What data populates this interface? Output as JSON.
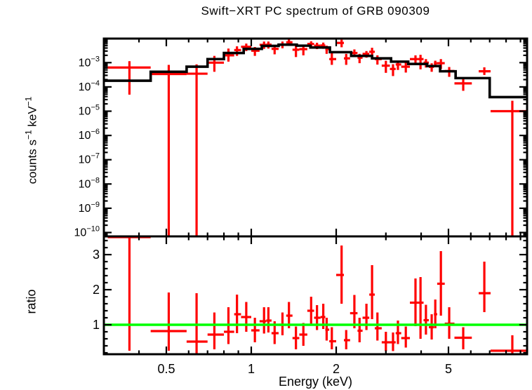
{
  "chart_data": {
    "type": "scatter",
    "title": "Swift−XRT PC spectrum of GRB 090309",
    "xlabel": "Energy (keV)",
    "colors": {
      "data": "#ff0000",
      "model": "#000000",
      "ratio_line": "#00ff00",
      "frame": "#000000",
      "background": "#ffffff"
    },
    "x_axis": {
      "scale": "log",
      "min": 0.3,
      "max": 9.5,
      "major_ticks": [
        0.5,
        1,
        2,
        5
      ],
      "major_tick_labels": [
        "0.5",
        "1",
        "2",
        "5"
      ],
      "minor_ticks": [
        0.3,
        0.4,
        0.6,
        0.7,
        0.8,
        0.9,
        3,
        4,
        6,
        7,
        8,
        9
      ]
    },
    "top_panel": {
      "ylabel_parts": {
        "pre": "counts s",
        "sup1": "−1",
        "mid": " keV",
        "sup2": "−1"
      },
      "y_scale": "log",
      "y_min": 1e-10,
      "y_max": 0.0098,
      "y_major_exponents": [
        -3,
        -4,
        -5,
        -6,
        -7,
        -8,
        -9,
        -10
      ],
      "model_bin_fields": [
        "E_lo_keV",
        "E_hi_keV",
        "model_counts"
      ],
      "model_bins": [
        [
          0.3,
          0.44,
          0.00018
        ],
        [
          0.44,
          0.59,
          0.00042
        ],
        [
          0.59,
          0.7,
          0.00068
        ],
        [
          0.7,
          0.8,
          0.0014
        ],
        [
          0.8,
          0.94,
          0.0025
        ],
        [
          0.94,
          1.09,
          0.0037
        ],
        [
          1.09,
          1.25,
          0.0049
        ],
        [
          1.25,
          1.45,
          0.0055
        ],
        [
          1.45,
          1.62,
          0.005
        ],
        [
          1.62,
          1.9,
          0.0042
        ],
        [
          1.9,
          2.26,
          0.0027
        ],
        [
          2.26,
          2.68,
          0.0019
        ],
        [
          2.68,
          3.13,
          0.0015
        ],
        [
          3.13,
          3.6,
          0.0011
        ],
        [
          3.6,
          4.2,
          0.00088
        ],
        [
          4.2,
          4.67,
          0.00072
        ],
        [
          4.67,
          5.3,
          0.00044
        ],
        [
          5.3,
          7.0,
          0.00023
        ],
        [
          7.0,
          9.5,
          3.8e-05
        ]
      ],
      "point_fields": [
        "E_keV",
        "E_lo",
        "E_hi",
        "counts",
        "err_lo",
        "err_hi"
      ],
      "points": [
        [
          0.37,
          0.31,
          0.44,
          0.00063,
          4.8e-05,
          0.00115
        ],
        [
          0.51,
          0.44,
          0.59,
          0.00034,
          0,
          0.00081
        ],
        [
          0.64,
          0.59,
          0.7,
          0.00035,
          0,
          0.00085
        ],
        [
          0.74,
          0.7,
          0.8,
          0.001,
          0.00042,
          0.0019
        ],
        [
          0.83,
          0.8,
          0.87,
          0.002,
          0.0011,
          0.0038
        ],
        [
          0.89,
          0.87,
          0.92,
          0.0033,
          0.0019,
          0.0047
        ],
        [
          0.96,
          0.92,
          1.0,
          0.0045,
          0.003,
          0.0061
        ],
        [
          1.03,
          1.0,
          1.07,
          0.0031,
          0.0019,
          0.0044
        ],
        [
          1.11,
          1.07,
          1.13,
          0.0054,
          0.0037,
          0.0074
        ],
        [
          1.15,
          1.13,
          1.18,
          0.0055,
          0.0038,
          0.0074
        ],
        [
          1.21,
          1.18,
          1.25,
          0.0037,
          0.0022,
          0.0054
        ],
        [
          1.29,
          1.25,
          1.33,
          0.0055,
          0.0039,
          0.0074
        ],
        [
          1.36,
          1.33,
          1.4,
          0.0069,
          0.005,
          0.0091
        ],
        [
          1.44,
          1.4,
          1.48,
          0.0034,
          0.0017,
          0.0052
        ],
        [
          1.53,
          1.48,
          1.58,
          0.0036,
          0.002,
          0.0053
        ],
        [
          1.63,
          1.58,
          1.67,
          0.0059,
          0.0042,
          0.0076
        ],
        [
          1.71,
          1.67,
          1.76,
          0.005,
          0.0036,
          0.0066
        ],
        [
          1.8,
          1.76,
          1.83,
          0.0051,
          0.0037,
          0.0067
        ],
        [
          1.85,
          1.83,
          1.89,
          0.0036,
          0.0023,
          0.005
        ],
        [
          1.93,
          1.89,
          2.0,
          0.0014,
          0.00081,
          0.0025
        ],
        [
          2.09,
          2.0,
          2.13,
          0.0065,
          0.0043,
          0.0088
        ],
        [
          2.17,
          2.13,
          2.24,
          0.0015,
          0.00081,
          0.0023
        ],
        [
          2.32,
          2.24,
          2.38,
          0.0025,
          0.0017,
          0.0035
        ],
        [
          2.42,
          2.38,
          2.48,
          0.0016,
          0.00095,
          0.0023
        ],
        [
          2.56,
          2.48,
          2.62,
          0.0023,
          0.0016,
          0.003
        ],
        [
          2.68,
          2.62,
          2.74,
          0.0028,
          0.0017,
          0.0041
        ],
        [
          2.8,
          2.74,
          2.9,
          0.0014,
          0.00083,
          0.002
        ],
        [
          3.0,
          2.9,
          3.1,
          0.00075,
          0.00038,
          0.0012
        ],
        [
          3.18,
          3.1,
          3.25,
          0.00055,
          0.00028,
          0.00086
        ],
        [
          3.31,
          3.25,
          3.4,
          0.00084,
          0.0005,
          0.0012
        ],
        [
          3.53,
          3.4,
          3.65,
          0.00068,
          0.00039,
          0.001
        ],
        [
          3.82,
          3.65,
          3.9,
          0.0014,
          0.00084,
          0.002
        ],
        [
          3.98,
          3.9,
          4.08,
          0.0014,
          0.00053,
          0.0021
        ],
        [
          4.16,
          4.08,
          4.26,
          0.001,
          0.00063,
          0.0014
        ],
        [
          4.36,
          4.26,
          4.44,
          0.00067,
          0.00042,
          0.00094
        ],
        [
          4.49,
          4.44,
          4.56,
          0.00094,
          0.00065,
          0.0012
        ],
        [
          4.7,
          4.56,
          4.85,
          0.00095,
          0.00055,
          0.0014
        ],
        [
          5.03,
          4.85,
          5.25,
          0.00045,
          0.00026,
          0.00066
        ],
        [
          5.64,
          5.25,
          6.05,
          0.00014,
          6.9e-05,
          0.00021
        ],
        [
          6.7,
          6.4,
          7.05,
          0.00044,
          0.00031,
          0.00064
        ],
        [
          8.42,
          7.05,
          9.5,
          1e-05,
          0,
          2.7e-05
        ]
      ]
    },
    "ratio_panel": {
      "ylabel": "ratio",
      "y_scale": "linear",
      "y_min": 0.16,
      "y_max": 3.52,
      "y_major_ticks": [
        1,
        2,
        3
      ],
      "y_minor_step": 0.2,
      "reference_line": 1.0,
      "point_fields": [
        "E_keV",
        "E_lo",
        "E_hi",
        "ratio",
        "err_lo",
        "err_hi"
      ],
      "points": [
        [
          0.37,
          0.31,
          0.44,
          3.5,
          0.26,
          3.55
        ],
        [
          0.51,
          0.44,
          0.59,
          0.82,
          0.26,
          1.92
        ],
        [
          0.64,
          0.59,
          0.7,
          0.52,
          0.0,
          1.9
        ],
        [
          0.74,
          0.7,
          0.8,
          0.72,
          0.3,
          1.35
        ],
        [
          0.83,
          0.8,
          0.87,
          0.8,
          0.45,
          1.5
        ],
        [
          0.89,
          0.87,
          0.92,
          1.3,
          0.76,
          1.86
        ],
        [
          0.96,
          0.92,
          1.0,
          1.22,
          0.8,
          1.65
        ],
        [
          1.03,
          1.0,
          1.07,
          0.84,
          0.5,
          1.2
        ],
        [
          1.11,
          1.07,
          1.13,
          1.1,
          0.75,
          1.5
        ],
        [
          1.15,
          1.13,
          1.18,
          1.12,
          0.78,
          1.5
        ],
        [
          1.21,
          1.18,
          1.25,
          0.76,
          0.45,
          1.1
        ],
        [
          1.29,
          1.25,
          1.33,
          1.0,
          0.7,
          1.35
        ],
        [
          1.36,
          1.33,
          1.4,
          1.26,
          0.9,
          1.65
        ],
        [
          1.44,
          1.4,
          1.48,
          0.62,
          0.3,
          0.95
        ],
        [
          1.53,
          1.48,
          1.58,
          0.72,
          0.4,
          1.05
        ],
        [
          1.63,
          1.58,
          1.67,
          1.4,
          1.0,
          1.8
        ],
        [
          1.71,
          1.67,
          1.76,
          1.2,
          0.85,
          1.56
        ],
        [
          1.8,
          1.76,
          1.83,
          1.22,
          0.88,
          1.6
        ],
        [
          1.85,
          1.83,
          1.89,
          0.86,
          0.55,
          1.2
        ],
        [
          1.93,
          1.89,
          2.0,
          0.53,
          0.3,
          0.93
        ],
        [
          2.09,
          2.0,
          2.13,
          2.42,
          1.6,
          3.26
        ],
        [
          2.17,
          2.13,
          2.24,
          0.56,
          0.3,
          0.85
        ],
        [
          2.32,
          2.24,
          2.38,
          1.33,
          0.9,
          1.85
        ],
        [
          2.42,
          2.38,
          2.48,
          0.83,
          0.5,
          1.2
        ],
        [
          2.56,
          2.48,
          2.62,
          1.2,
          0.85,
          1.6
        ],
        [
          2.68,
          2.62,
          2.74,
          1.86,
          1.16,
          2.7
        ],
        [
          2.8,
          2.74,
          2.9,
          0.9,
          0.55,
          1.35
        ],
        [
          3.0,
          2.9,
          3.1,
          0.5,
          0.25,
          0.8
        ],
        [
          3.18,
          3.1,
          3.25,
          0.5,
          0.25,
          0.78
        ],
        [
          3.31,
          3.25,
          3.4,
          0.76,
          0.45,
          1.12
        ],
        [
          3.53,
          3.4,
          3.65,
          0.62,
          0.35,
          0.95
        ],
        [
          3.82,
          3.65,
          3.9,
          1.63,
          0.96,
          2.32
        ],
        [
          3.98,
          3.9,
          4.08,
          1.63,
          0.6,
          2.36
        ],
        [
          4.16,
          4.08,
          4.26,
          1.13,
          0.72,
          1.57
        ],
        [
          4.36,
          4.26,
          4.44,
          0.93,
          0.58,
          1.3
        ],
        [
          4.49,
          4.44,
          4.56,
          1.3,
          0.9,
          1.72
        ],
        [
          4.7,
          4.56,
          4.85,
          2.17,
          1.26,
          3.1
        ],
        [
          5.03,
          4.85,
          5.25,
          1.03,
          0.6,
          1.5
        ],
        [
          5.64,
          5.25,
          6.05,
          0.63,
          0.3,
          0.93
        ],
        [
          6.7,
          6.4,
          7.05,
          1.9,
          1.36,
          2.8
        ],
        [
          8.42,
          7.05,
          9.5,
          0.26,
          0.12,
          0.7
        ]
      ]
    }
  }
}
